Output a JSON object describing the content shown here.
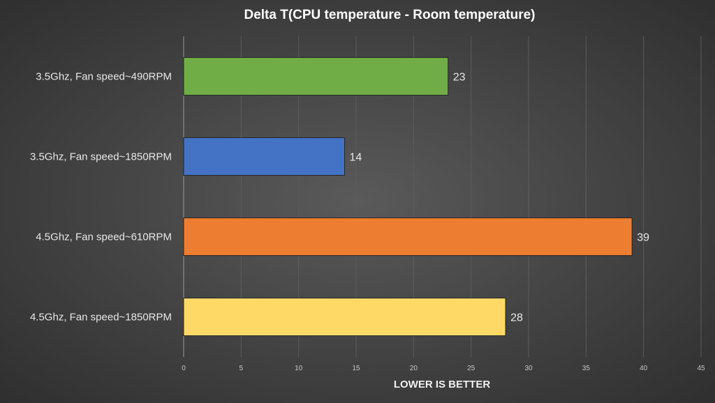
{
  "chart_data": {
    "type": "bar",
    "orientation": "horizontal",
    "title": "Delta T(CPU temperature  - Room temperature)",
    "xlabel": "LOWER IS BETTER",
    "ylabel": "",
    "categories": [
      "3.5Ghz, Fan speed~490RPM",
      "3.5Ghz, Fan speed~1850RPM",
      "4.5Ghz, Fan speed~610RPM",
      "4.5Ghz, Fan speed~1850RPM"
    ],
    "values": [
      23,
      14,
      39,
      28
    ],
    "bar_colors": [
      "#70ad47",
      "#4472c4",
      "#ed7d31",
      "#ffd966"
    ],
    "xlim": [
      0,
      45
    ],
    "xticks": [
      0,
      5,
      10,
      15,
      20,
      25,
      30,
      35,
      40,
      45
    ],
    "grid": true,
    "data_labels": true,
    "legend": "none"
  }
}
